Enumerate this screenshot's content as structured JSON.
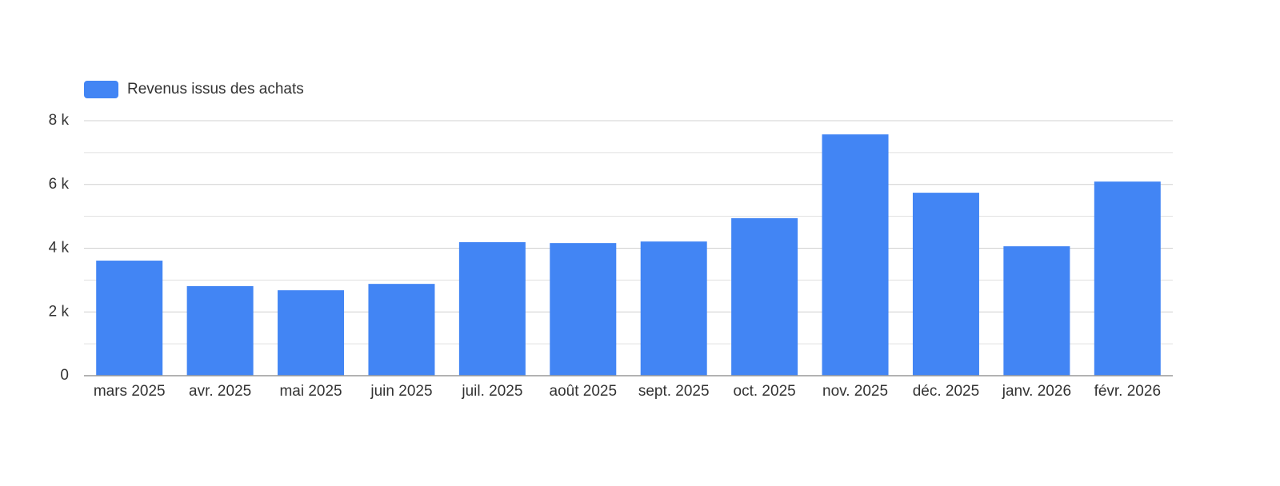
{
  "chart_data": {
    "type": "bar",
    "legend": {
      "position": "top-left"
    },
    "series": [
      {
        "name": "Revenus issus des achats",
        "color": "#4285f4",
        "values": [
          3610,
          2810,
          2680,
          2880,
          4190,
          4160,
          4210,
          4940,
          7570,
          5740,
          4060,
          6090
        ]
      }
    ],
    "categories": [
      "mars 2025",
      "avr. 2025",
      "mai 2025",
      "juin 2025",
      "juil. 2025",
      "août 2025",
      "sept. 2025",
      "oct. 2025",
      "nov. 2025",
      "déc. 2025",
      "janv. 2026",
      "févr. 2026"
    ],
    "ylim": [
      0,
      8000
    ],
    "yticks": [
      0,
      {
        "value": 2000,
        "label": "2 k"
      },
      {
        "value": 4000,
        "label": "4 k"
      },
      {
        "value": 6000,
        "label": "6 k"
      },
      {
        "value": 8000,
        "label": "8 k"
      }
    ],
    "minor_yticks": [
      1000,
      3000,
      5000,
      7000
    ],
    "grid": true
  }
}
